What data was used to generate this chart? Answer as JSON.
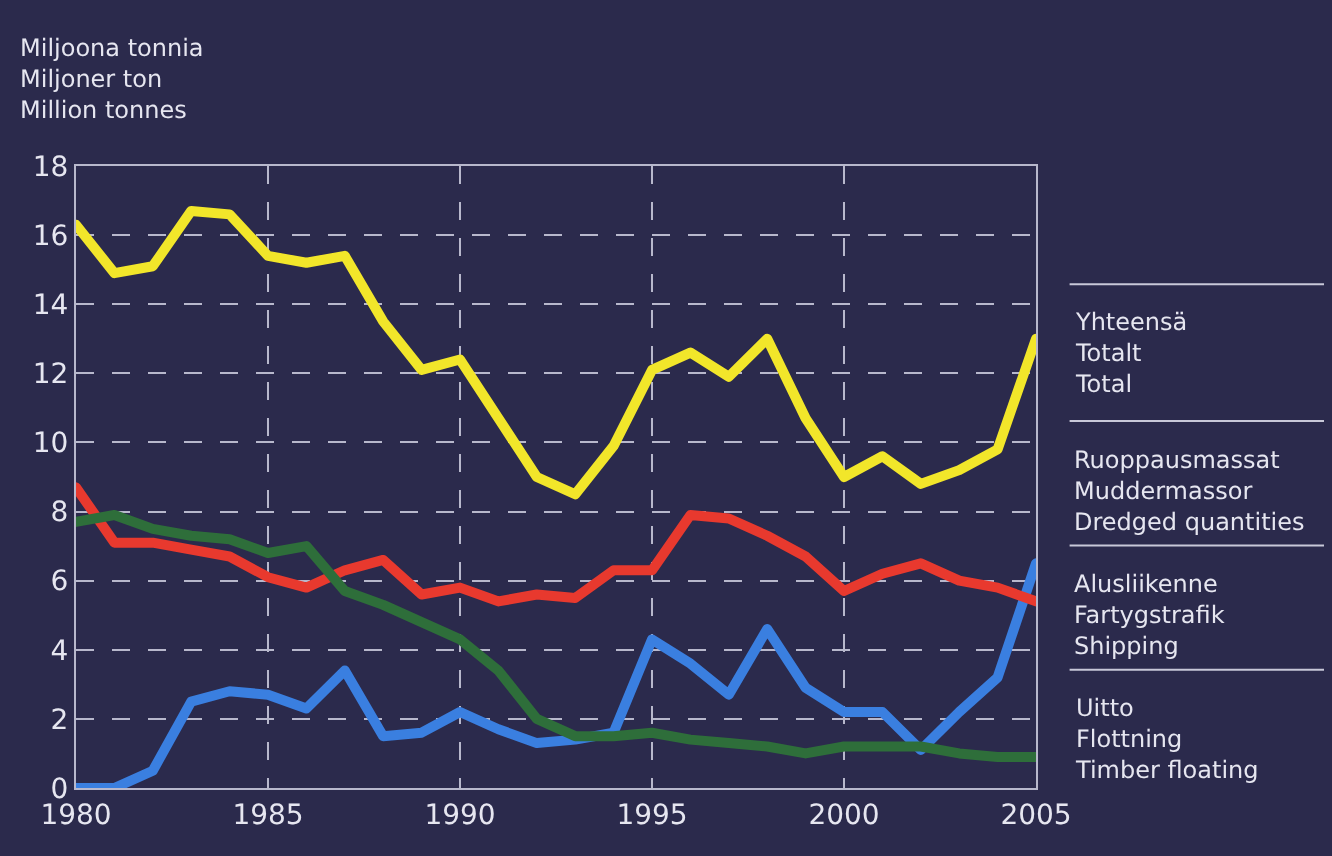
{
  "chart_data": {
    "type": "line",
    "ylabel": "Miljoona tonnia\nMiljoner ton\nMillion tonnes",
    "x": [
      1980,
      1981,
      1982,
      1983,
      1984,
      1985,
      1986,
      1987,
      1988,
      1989,
      1990,
      1991,
      1992,
      1993,
      1994,
      1995,
      1996,
      1997,
      1998,
      1999,
      2000,
      2001,
      2002,
      2003,
      2004,
      2005
    ],
    "xlim": [
      1980,
      2005
    ],
    "xticks": [
      1980,
      1985,
      1990,
      1995,
      2000,
      2005
    ],
    "ylim": [
      0,
      18
    ],
    "yticks": [
      0,
      2,
      4,
      6,
      8,
      10,
      12,
      14,
      16,
      18
    ],
    "grid": true,
    "legend": false,
    "marker": "none",
    "line_style": "solid",
    "series": [
      {
        "name": "Yhteensä\nTotalt\nTotal",
        "color": "#f2e62a",
        "values": [
          16.3,
          14.9,
          15.1,
          16.7,
          16.6,
          15.4,
          15.2,
          15.4,
          13.5,
          12.1,
          12.4,
          10.7,
          9.0,
          8.5,
          9.9,
          12.1,
          12.6,
          11.9,
          13.0,
          10.7,
          9.0,
          9.6,
          8.8,
          9.2,
          9.8,
          13.0
        ]
      },
      {
        "name": "Ruoppausmassat\nMuddermassor\nDredged quantities",
        "color": "#3a7fe0",
        "values": [
          0,
          0,
          0.5,
          2.5,
          2.8,
          2.7,
          2.3,
          3.4,
          1.5,
          1.6,
          2.2,
          1.7,
          1.3,
          1.4,
          1.6,
          4.3,
          3.6,
          2.7,
          4.6,
          2.9,
          2.2,
          2.2,
          1.1,
          2.2,
          3.2,
          6.5
        ]
      },
      {
        "name": "Alusliikenne\nFartygstrafik\nShipping",
        "color": "#e8392e",
        "values": [
          8.7,
          7.1,
          7.1,
          6.9,
          6.7,
          6.1,
          5.8,
          6.3,
          6.6,
          5.6,
          5.8,
          5.4,
          5.6,
          5.5,
          6.3,
          6.3,
          7.9,
          7.8,
          7.3,
          6.7,
          5.7,
          6.2,
          6.5,
          6.0,
          5.8,
          5.4
        ]
      },
      {
        "name": "Uitto\nFlottning\nTimber floating",
        "color": "#2e6e3a",
        "values": [
          7.7,
          7.9,
          7.5,
          7.3,
          7.2,
          6.8,
          7.0,
          5.7,
          5.3,
          4.8,
          4.3,
          3.4,
          2.0,
          1.5,
          1.5,
          1.6,
          1.4,
          1.3,
          1.2,
          1.0,
          1.2,
          1.2,
          1.2,
          1.0,
          0.9,
          0.9
        ]
      }
    ]
  }
}
